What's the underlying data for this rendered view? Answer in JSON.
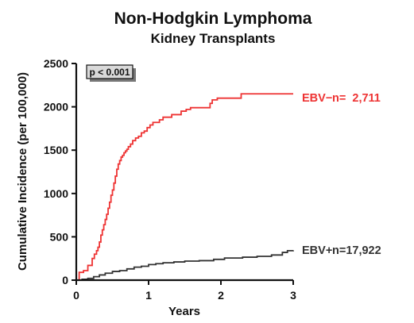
{
  "chart_data": {
    "type": "line",
    "title": "Non-Hodgkin Lymphoma",
    "subtitle": "Kidney Transplants",
    "xlabel": "Years",
    "ylabel": "Cumulative Incidence (per 100,000)",
    "xlim": [
      0,
      3
    ],
    "ylim": [
      0,
      2500
    ],
    "xticks": [
      0,
      1,
      2,
      3
    ],
    "yticks": [
      0,
      500,
      1000,
      1500,
      2000,
      2500
    ],
    "grid": false,
    "annotation": "p < 0.001",
    "series": [
      {
        "name": "EBV−",
        "n_label": "n=  2,711",
        "color": "#ee3333",
        "step": true,
        "x": [
          0,
          0.04,
          0.1,
          0.16,
          0.22,
          0.25,
          0.28,
          0.3,
          0.32,
          0.34,
          0.36,
          0.38,
          0.4,
          0.42,
          0.44,
          0.46,
          0.48,
          0.5,
          0.52,
          0.54,
          0.56,
          0.58,
          0.6,
          0.62,
          0.64,
          0.66,
          0.68,
          0.7,
          0.72,
          0.75,
          0.78,
          0.82,
          0.86,
          0.9,
          0.94,
          0.98,
          1.02,
          1.06,
          1.1,
          1.15,
          1.2,
          1.32,
          1.45,
          1.52,
          1.58,
          1.63,
          1.85,
          1.88,
          1.95,
          2.28,
          3.0
        ],
        "y": [
          0,
          90,
          110,
          170,
          250,
          300,
          340,
          380,
          440,
          520,
          580,
          640,
          700,
          760,
          830,
          900,
          980,
          1040,
          1120,
          1200,
          1280,
          1340,
          1380,
          1420,
          1440,
          1470,
          1490,
          1510,
          1540,
          1570,
          1610,
          1640,
          1660,
          1700,
          1720,
          1760,
          1790,
          1820,
          1820,
          1850,
          1880,
          1910,
          1950,
          1970,
          1990,
          1990,
          2040,
          2080,
          2100,
          2150,
          2150
        ]
      },
      {
        "name": "EBV+",
        "n_label": "n=17,922",
        "color": "#333333",
        "step": true,
        "x": [
          0,
          0.08,
          0.16,
          0.24,
          0.32,
          0.4,
          0.5,
          0.6,
          0.7,
          0.8,
          0.9,
          1.0,
          1.1,
          1.2,
          1.35,
          1.5,
          1.7,
          1.9,
          2.05,
          2.3,
          2.5,
          2.7,
          2.85,
          2.92,
          3.0
        ],
        "y": [
          0,
          10,
          20,
          40,
          60,
          80,
          100,
          110,
          130,
          150,
          160,
          180,
          190,
          200,
          210,
          220,
          225,
          240,
          255,
          265,
          275,
          290,
          320,
          340,
          345
        ]
      }
    ]
  }
}
